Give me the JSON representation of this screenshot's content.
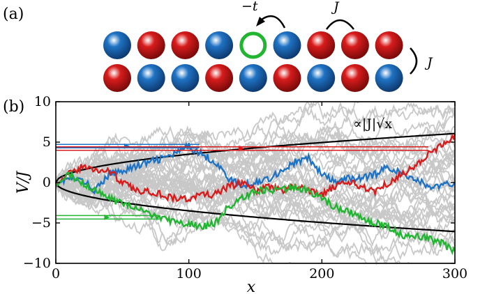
{
  "colors": {
    "red": "#d81c1c",
    "blue": "#1f73c4",
    "green": "#22b531",
    "gray": "#c8c8c8",
    "black": "#000000"
  },
  "panel_a": {
    "label": "(a)",
    "hop_label": "−t",
    "coupling_label_top": "J",
    "coupling_label_side": "J",
    "row1": [
      "blue",
      "red",
      "red",
      "blue",
      "hole",
      "blue",
      "red",
      "red",
      "red"
    ],
    "row2": [
      "red",
      "blue",
      "blue",
      "red",
      "blue",
      "red",
      "blue",
      "red",
      "blue"
    ]
  },
  "panel_b": {
    "label": "(b)",
    "envelope_label": "∝|J|√x"
  },
  "chart_data": {
    "type": "line",
    "xlabel": "x",
    "ylabel": "V/J",
    "xlim": [
      0,
      300
    ],
    "ylim": [
      -10,
      10
    ],
    "xticks": [
      "0",
      "100",
      "200",
      "300"
    ],
    "yticks": [
      "−10",
      "−5",
      "0",
      "5",
      "10"
    ],
    "envelope_amplitude": 0.35,
    "gray_series_count": 40,
    "highlight_series": [
      {
        "color": "blue",
        "x": [
          0,
          10,
          20,
          30,
          40,
          50,
          60,
          70,
          80,
          90,
          100,
          110,
          120,
          130,
          140,
          150,
          160,
          170,
          180,
          190,
          200,
          210,
          220,
          230,
          240,
          250,
          260,
          270,
          280,
          290,
          300
        ],
        "y": [
          0,
          0.5,
          0.2,
          -1,
          1,
          1.5,
          2,
          2.5,
          3,
          3.5,
          4.5,
          3.5,
          2.5,
          0.5,
          -0.5,
          0,
          0.5,
          1.5,
          2.5,
          3,
          1,
          0,
          0.5,
          0.5,
          1,
          2,
          1,
          0.5,
          -0.5,
          -0.5,
          0
        ],
        "plateau": 4.5,
        "plateau_x_end": 108
      },
      {
        "color": "red",
        "x": [
          0,
          10,
          20,
          30,
          40,
          50,
          60,
          70,
          80,
          90,
          100,
          110,
          120,
          130,
          140,
          150,
          160,
          170,
          180,
          190,
          200,
          210,
          220,
          230,
          240,
          250,
          260,
          270,
          280,
          290,
          300
        ],
        "y": [
          0,
          1,
          2,
          1.5,
          1.5,
          0,
          -1,
          -1,
          -1.5,
          -2,
          -2,
          -1.5,
          -1.5,
          -0.5,
          0,
          -1,
          -0.5,
          -1,
          -0.5,
          -1,
          -1.5,
          -0.5,
          0,
          -0.5,
          -1,
          0,
          1,
          2,
          3.5,
          4.5,
          6
        ],
        "plateau": 4.2,
        "plateau_x_end": 280
      },
      {
        "color": "green",
        "x": [
          0,
          10,
          20,
          30,
          40,
          50,
          60,
          70,
          80,
          90,
          100,
          110,
          120,
          130,
          140,
          150,
          160,
          170,
          180,
          190,
          200,
          210,
          220,
          230,
          240,
          250,
          260,
          270,
          280,
          290,
          300
        ],
        "y": [
          0,
          1,
          0,
          -1,
          -2,
          -2.5,
          -3,
          -4,
          -4.5,
          -5,
          -5,
          -5.5,
          -5,
          -3,
          -2,
          -1,
          -1,
          -1,
          -0.5,
          -1,
          -2,
          -3,
          -3.5,
          -4.5,
          -5,
          -5.5,
          -6.5,
          -6.5,
          -7,
          -7.5,
          -8.5
        ],
        "plateau": -4.3,
        "plateau_x_end": 78
      }
    ]
  }
}
